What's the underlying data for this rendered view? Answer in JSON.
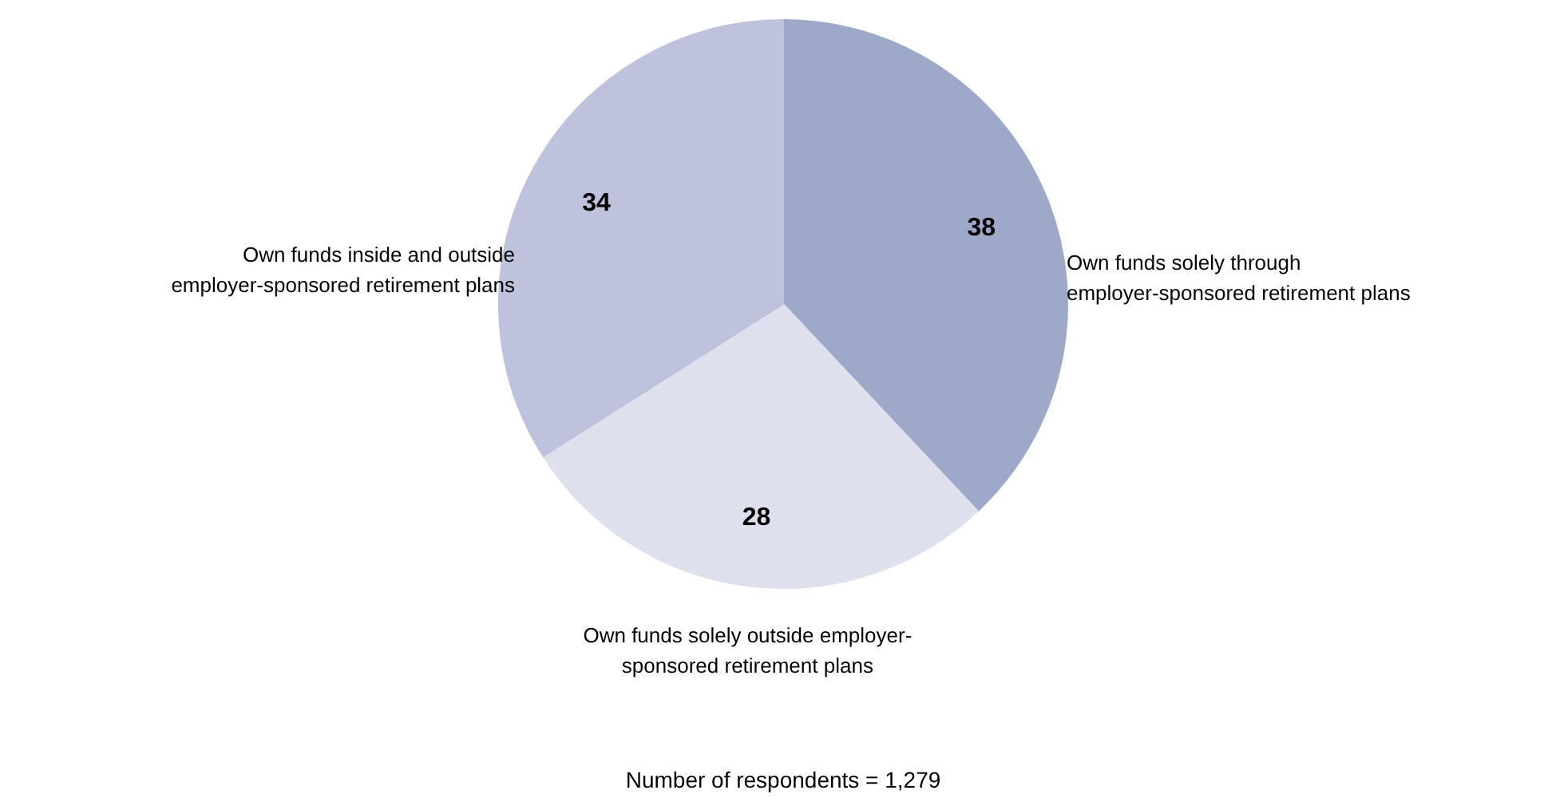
{
  "chart_data": {
    "type": "pie",
    "categories": [
      "Own funds solely through\nemployer-sponsored retirement plans",
      "Own funds solely outside employer-\nsponsored retirement plans",
      "Own funds inside and outside\nemployer-sponsored retirement plans"
    ],
    "values": [
      38,
      28,
      34
    ],
    "colors": [
      "#9ea8c9",
      "#dfe0ed",
      "#bec2dc"
    ],
    "data_labels": true,
    "annotations": [
      "Number of respondents = 1,279"
    ]
  }
}
